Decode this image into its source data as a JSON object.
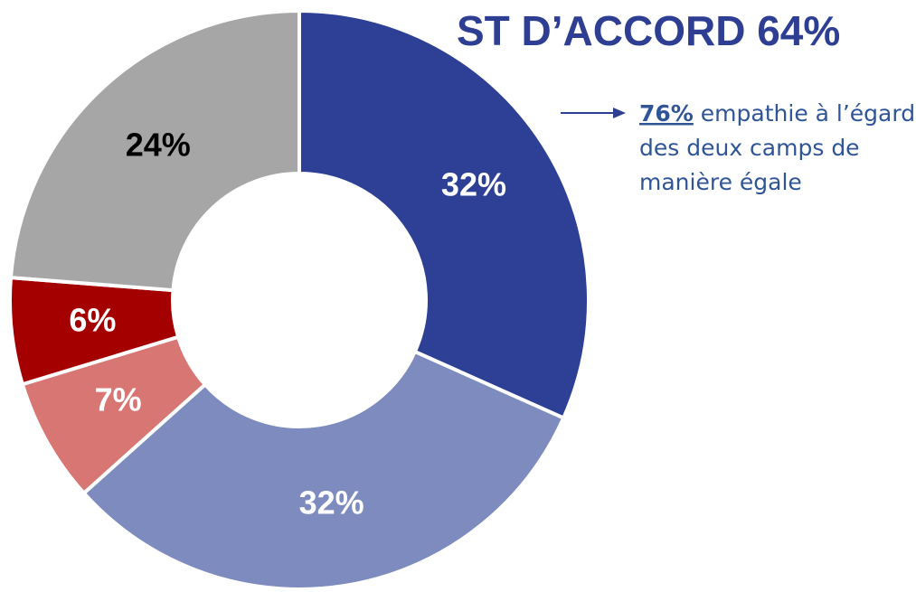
{
  "chart_data": {
    "type": "donut",
    "title": "ST D’ACCORD 64%",
    "values": [
      32,
      32,
      7,
      6,
      24
    ],
    "value_labels": [
      "32%",
      "32%",
      "7%",
      "6%",
      "24%"
    ],
    "colors": [
      "#2e4095",
      "#7e8bbf",
      "#d77673",
      "#a50000",
      "#a6a6a6"
    ],
    "label_colors": [
      "#ffffff",
      "#ffffff",
      "#ffffff",
      "#ffffff",
      "#000000"
    ],
    "annotation": {
      "emphasis": "76%",
      "lines": [
        "empathie à l’égard",
        "des deux camps de",
        "manière égale"
      ]
    }
  }
}
